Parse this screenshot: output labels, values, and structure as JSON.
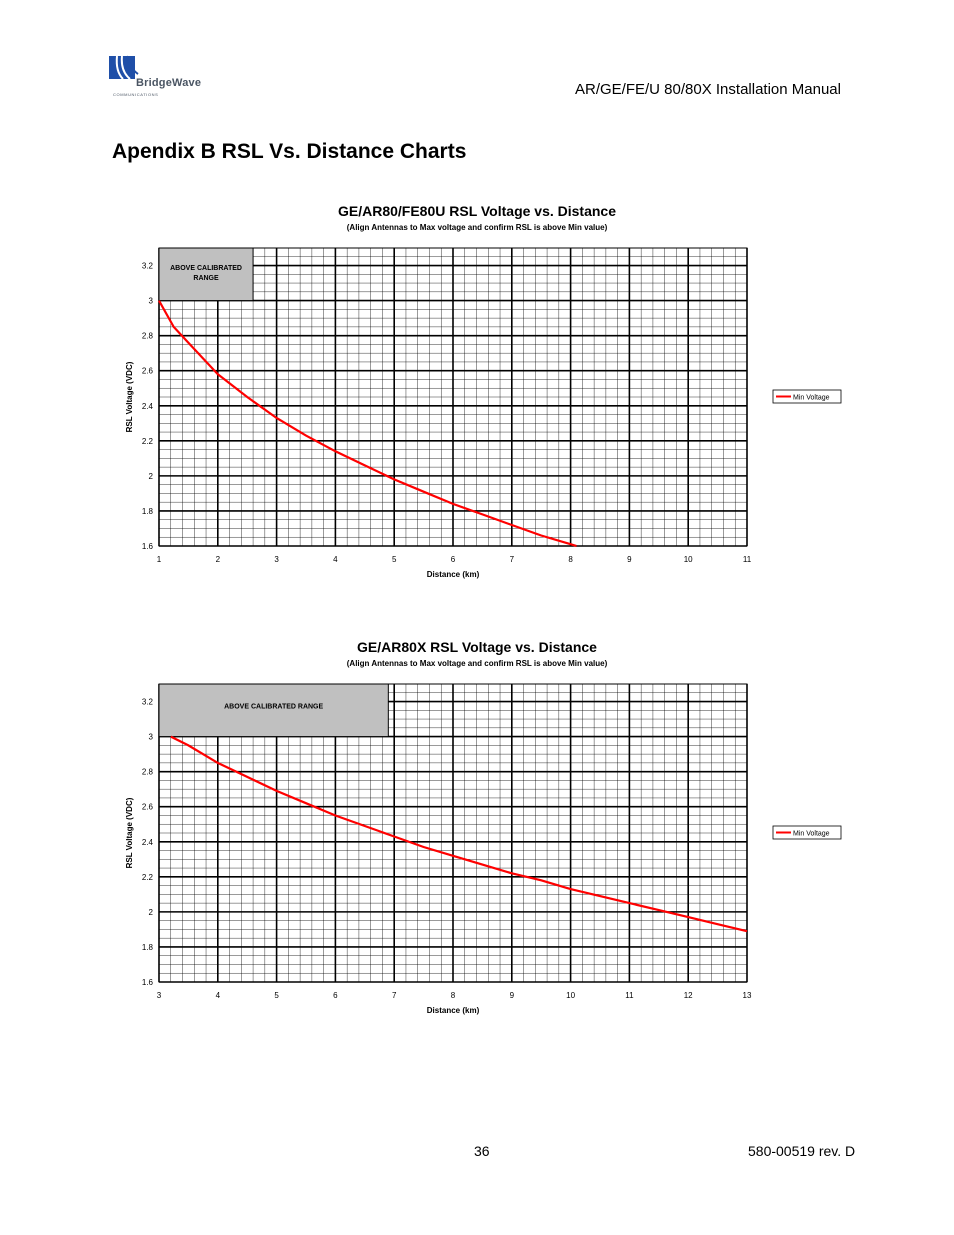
{
  "header": {
    "logo_text": "BridgeWave",
    "logo_subtext": "COMMUNICATIONS",
    "manual_title": "AR/GE/FE/U 80/80X Installation Manual"
  },
  "page": {
    "heading": "Apendix B RSL Vs. Distance Charts"
  },
  "chart_data": [
    {
      "type": "line",
      "title": "GE/AR80/FE80U RSL Voltage vs. Distance",
      "subtitle": "(Align Antennas to Max voltage and confirm RSL is above Min value)",
      "xlabel": "Distance (km)",
      "ylabel": "RSL Voltage (VDC)",
      "xlim": [
        1,
        11
      ],
      "ylim": [
        1.6,
        3.3
      ],
      "xticks": [
        "1",
        "2",
        "3",
        "4",
        "5",
        "6",
        "7",
        "8",
        "9",
        "10",
        "11"
      ],
      "yticks": [
        "1.6",
        "1.8",
        "2",
        "2.2",
        "2.4",
        "2.6",
        "2.8",
        "3",
        "3.2"
      ],
      "legend": [
        "Min Voltage"
      ],
      "legend_position": "right",
      "annotation": "ABOVE CALIBRATED RANGE",
      "annotation_range": {
        "x": [
          1,
          2.6
        ],
        "y": [
          3.0,
          3.3
        ]
      },
      "series": [
        {
          "name": "Min Voltage",
          "color": "#ff0000",
          "x": [
            1,
            1.25,
            1.5,
            2,
            2.5,
            3,
            3.5,
            4,
            4.5,
            5,
            5.5,
            6,
            6.5,
            7,
            7.5,
            8,
            8.1
          ],
          "y": [
            3.0,
            2.85,
            2.76,
            2.58,
            2.45,
            2.33,
            2.23,
            2.14,
            2.06,
            1.98,
            1.91,
            1.84,
            1.78,
            1.72,
            1.66,
            1.61,
            1.6
          ]
        }
      ]
    },
    {
      "type": "line",
      "title": "GE/AR80X RSL Voltage vs. Distance",
      "subtitle": "(Align Antennas to Max voltage and confirm RSL is above Min value)",
      "xlabel": "Distance (km)",
      "ylabel": "RSL Voltage (VDC)",
      "xlim": [
        3,
        13
      ],
      "ylim": [
        1.6,
        3.3
      ],
      "xticks": [
        "3",
        "4",
        "5",
        "6",
        "7",
        "8",
        "9",
        "10",
        "11",
        "12",
        "13"
      ],
      "yticks": [
        "1.6",
        "1.8",
        "2",
        "2.2",
        "2.4",
        "2.6",
        "2.8",
        "3",
        "3.2"
      ],
      "legend": [
        "Min Voltage"
      ],
      "legend_position": "right",
      "annotation": "ABOVE CALIBRATED RANGE",
      "annotation_range": {
        "x": [
          3,
          6.9
        ],
        "y": [
          3.0,
          3.3
        ]
      },
      "series": [
        {
          "name": "Min Voltage",
          "color": "#ff0000",
          "x": [
            3.2,
            3.5,
            4,
            4.5,
            5,
            5.5,
            6,
            6.5,
            7,
            7.5,
            8,
            8.5,
            9,
            9.5,
            10,
            10.5,
            11,
            11.5,
            12,
            12.5,
            13
          ],
          "y": [
            3.0,
            2.95,
            2.85,
            2.77,
            2.69,
            2.62,
            2.55,
            2.49,
            2.43,
            2.37,
            2.32,
            2.27,
            2.22,
            2.18,
            2.13,
            2.09,
            2.05,
            2.01,
            1.97,
            1.93,
            1.89
          ]
        }
      ]
    }
  ],
  "footer": {
    "page_number": "36",
    "doc_number": "580-00519 rev. D"
  }
}
